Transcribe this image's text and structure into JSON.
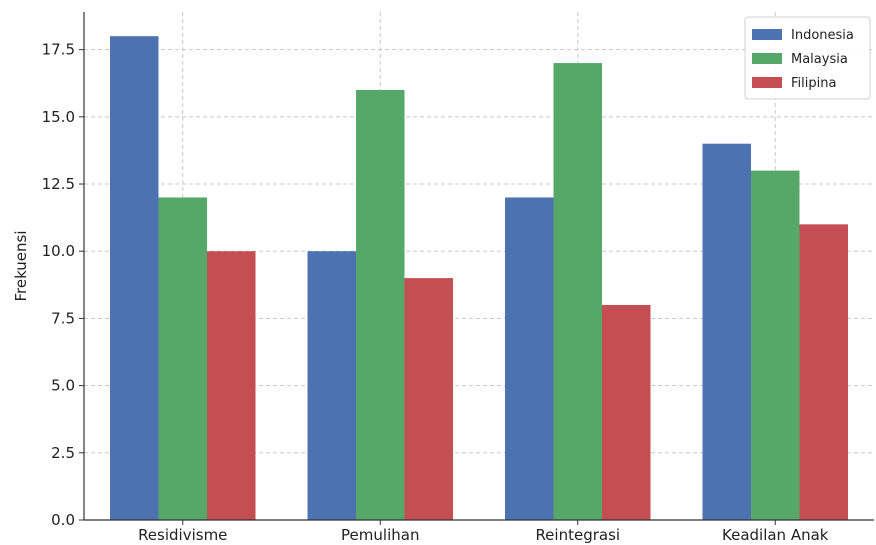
{
  "chart_data": {
    "type": "bar",
    "title": "",
    "xlabel": "",
    "ylabel": "Frekuensi",
    "categories": [
      "Residivisme",
      "Pemulihan",
      "Reintegrasi",
      "Keadilan Anak"
    ],
    "series": [
      {
        "name": "Indonesia",
        "color": "#4c72b0",
        "values": [
          18,
          10,
          12,
          14
        ]
      },
      {
        "name": "Malaysia",
        "color": "#55a868",
        "values": [
          12,
          16,
          17,
          13
        ]
      },
      {
        "name": "Filipina",
        "color": "#c44e52",
        "values": [
          10,
          9,
          8,
          11
        ]
      }
    ],
    "ylim": [
      0,
      18.9
    ],
    "yticks": [
      "0.0",
      "2.5",
      "5.0",
      "7.5",
      "10.0",
      "12.5",
      "15.0",
      "17.5"
    ],
    "grid": true,
    "legend_position": "top-right"
  }
}
